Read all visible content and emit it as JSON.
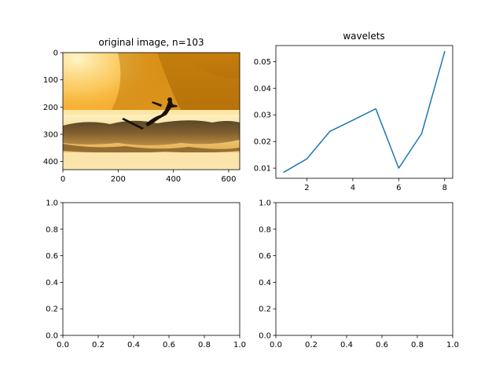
{
  "colors": {
    "line": "#1f77b4"
  },
  "chart_data": [
    {
      "type": "image",
      "title": "original image, n=103",
      "xlim": [
        0,
        640
      ],
      "ylim": [
        430,
        0
      ],
      "xticks": [
        "0",
        "200",
        "400",
        "600"
      ],
      "yticks": [
        "0",
        "100",
        "200",
        "300",
        "400"
      ],
      "image_description": "surfer silhouette on a wave at sunset, orange tones"
    },
    {
      "type": "line",
      "title": "wavelets",
      "x": [
        1,
        2,
        3,
        4,
        5,
        6,
        7,
        8
      ],
      "series": [
        {
          "values": [
            0.0085,
            0.0135,
            0.0238,
            0.028,
            0.0323,
            0.01,
            0.023,
            0.0537
          ]
        }
      ],
      "xlim": [
        0.65,
        8.35
      ],
      "ylim": [
        0.0062,
        0.056
      ],
      "xticks": [
        "2",
        "4",
        "6",
        "8"
      ],
      "yticks": [
        "0.01",
        "0.02",
        "0.03",
        "0.04",
        "0.05"
      ]
    },
    {
      "type": "empty",
      "title": "",
      "xlim": [
        0,
        1
      ],
      "ylim": [
        0,
        1
      ],
      "xticks": [
        "0.0",
        "0.2",
        "0.4",
        "0.6",
        "0.8",
        "1.0"
      ],
      "yticks": [
        "0.0",
        "0.2",
        "0.4",
        "0.6",
        "0.8",
        "1.0"
      ]
    },
    {
      "type": "empty",
      "title": "",
      "xlim": [
        0,
        1
      ],
      "ylim": [
        0,
        1
      ],
      "xticks": [
        "0.0",
        "0.2",
        "0.4",
        "0.6",
        "0.8",
        "1.0"
      ],
      "yticks": [
        "0.0",
        "0.2",
        "0.4",
        "0.6",
        "0.8",
        "1.0"
      ]
    }
  ]
}
